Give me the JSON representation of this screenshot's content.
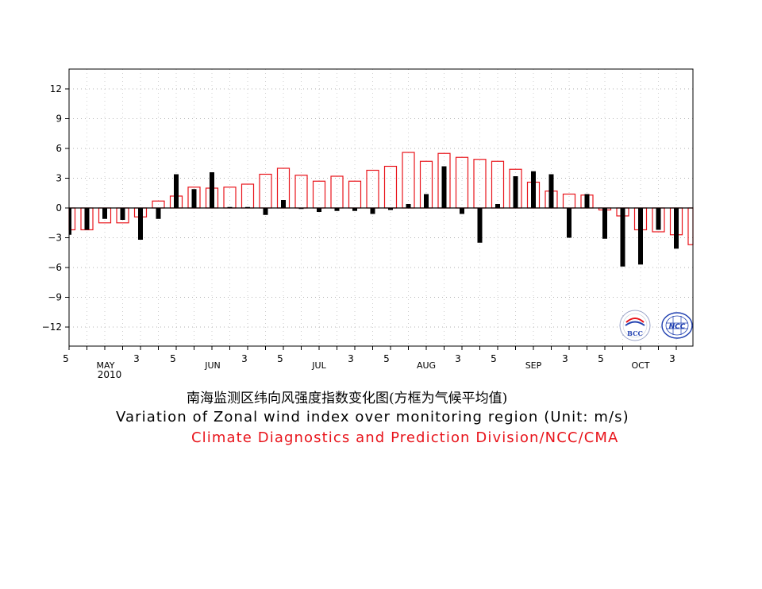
{
  "chart_data": {
    "type": "bar",
    "ylim": [
      -14,
      14
    ],
    "yticks": [
      -12,
      -9,
      -6,
      -3,
      0,
      3,
      6,
      9,
      12
    ],
    "ytick_labels": [
      "−12",
      "−9",
      "−6",
      "−3",
      "0",
      "3",
      "6",
      "9",
      "12"
    ],
    "grid": true,
    "x_tick_labels": [
      "5",
      "3",
      "5",
      "3",
      "5",
      "3",
      "5",
      "3",
      "5",
      "3",
      "5",
      "3",
      "5",
      "3"
    ],
    "month_labels": [
      "MAY",
      "JUN",
      "JUL",
      "AUG",
      "SEP",
      "OCT"
    ],
    "year_label": "2010",
    "series": [
      {
        "kind": "observed",
        "color": "#000000",
        "values": [
          -2.7,
          -2.2,
          -1.1,
          -1.2,
          -3.2,
          -1.1,
          3.4,
          1.9,
          3.6,
          0.1,
          0.1,
          -0.7,
          0.8,
          -0.1,
          -0.4,
          -0.3,
          -0.3,
          -0.6,
          -0.2,
          0.4,
          1.4,
          4.2,
          -0.6,
          -3.5,
          0.4,
          3.2,
          3.7,
          3.4,
          -3.0,
          1.4,
          -3.1,
          -5.9,
          -5.7,
          -2.2,
          -4.1
        ]
      },
      {
        "kind": "climatology",
        "color": "#e8141b",
        "values": [
          -2.2,
          -2.2,
          -1.5,
          -1.5,
          -0.9,
          0.7,
          1.2,
          2.1,
          2.0,
          2.1,
          2.4,
          3.4,
          4.0,
          3.3,
          2.7,
          3.2,
          2.7,
          3.8,
          4.2,
          5.6,
          4.7,
          5.5,
          5.1,
          4.9,
          4.7,
          3.9,
          2.6,
          1.7,
          1.4,
          1.3,
          -0.2,
          -0.8,
          -2.2,
          -2.4,
          -2.7,
          -3.7
        ]
      }
    ]
  },
  "captions": {
    "title_cn": "南海监测区纬向风强度指数变化图(方框为气候平均值)",
    "title_en": "Variation  of  Zonal  wind  index  over  monitoring  region    (Unit:  m/s)",
    "org": "Climate  Diagnostics  and  Prediction  Division/NCC/CMA"
  },
  "logos": {
    "bcc_text": "BCC",
    "ncc_text": "NCC",
    "bcc_color": "#1f3fb0",
    "ncc_color": "#1f3fb0"
  }
}
